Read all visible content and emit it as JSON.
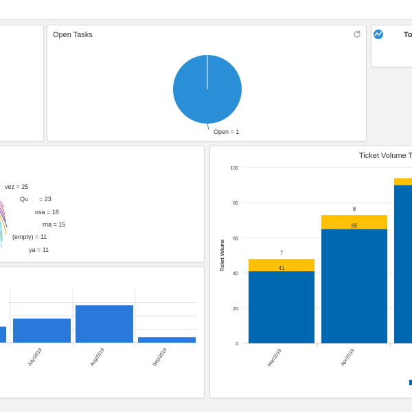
{
  "open_tasks": {
    "title": "Open Tasks",
    "slice_label": "Open = 1",
    "refresh_icon": "refresh-icon",
    "pie_color": "#2a8fd6"
  },
  "totals_panel": {
    "title_fragment": "Tot",
    "icon": "activity-icon"
  },
  "tickets_by_assignee": {
    "labels": [
      "vez = 25",
      "Qu",
      "= 23",
      "osa = 18",
      "rria = 15",
      "(empty) = 11",
      "ya = 11"
    ],
    "slice_colors": [
      "#e040fb",
      "#ff5252",
      "#9c27b0",
      "#3f51b5",
      "#ff9800",
      "#26c6da",
      "#80cbc4"
    ]
  },
  "monthly_bars": {
    "bar_color": "#2a78d9",
    "chart_data": {
      "type": "bar",
      "categories": [
        "July/2019",
        "Aug/2019",
        "Sep/2019"
      ],
      "values": [
        1.8,
        2.8,
        0.4
      ],
      "partial_leading_bar": 1.2,
      "ylim": [
        0,
        4
      ]
    }
  },
  "ticket_volume_trend": {
    "title": "Ticket Volume Tre",
    "ylabel": "Ticket Volume",
    "colors": {
      "base": "#0068b1",
      "top": "#ffc107"
    },
    "chart_data": {
      "type": "bar",
      "stacked": true,
      "categories": [
        "Mar/2019",
        "Apr/2019",
        ""
      ],
      "series": [
        {
          "values": [
            41,
            65,
            90
          ]
        },
        {
          "values": [
            7,
            8,
            4
          ]
        }
      ],
      "y_ticks": [
        "0",
        "20",
        "40",
        "60",
        "80",
        "100"
      ],
      "ylim": [
        0,
        100
      ],
      "data_labels": {
        "segment": [
          "41",
          "65",
          ""
        ],
        "top": [
          "7",
          "8",
          ""
        ]
      }
    }
  }
}
